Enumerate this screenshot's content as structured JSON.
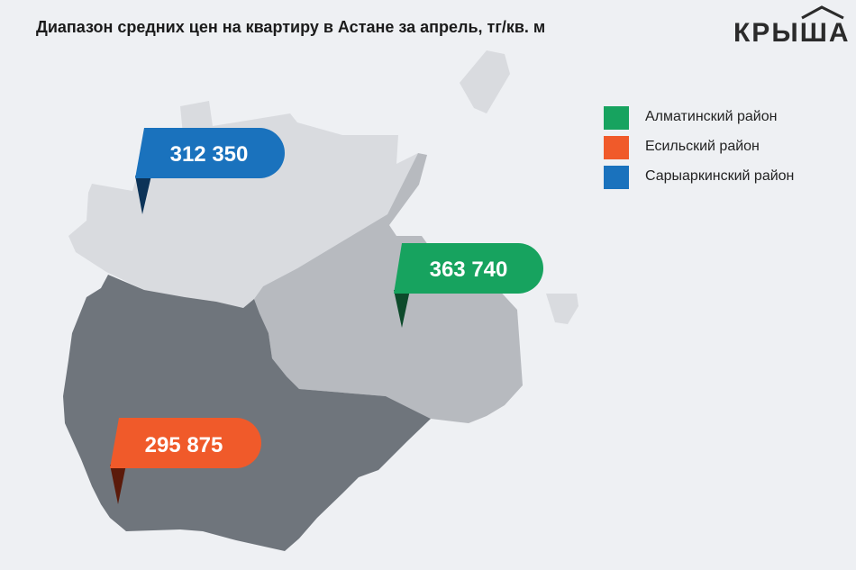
{
  "title": "Диапазон средних цен на квартиру в Астане за апрель, тг/кв. м",
  "logo": {
    "text": "КРЫША"
  },
  "colors": {
    "almaty": "#17a35f",
    "almaty_dark": "#0d4a2b",
    "esil": "#f05a2a",
    "esil_dark": "#5b1a0a",
    "saryarka": "#1a72bd",
    "saryarka_dark": "#0c3358",
    "region_light": "#d9dbdf",
    "region_mid": "#b7babf",
    "region_dark": "#6f757c"
  },
  "legend": [
    {
      "label": "Алматинский район",
      "color": "#17a35f"
    },
    {
      "label": "Есильский район",
      "color": "#f05a2a"
    },
    {
      "label": "Сарыаркинский район",
      "color": "#1a72bd"
    }
  ],
  "pins": {
    "saryarka": {
      "value": "312 350"
    },
    "almaty": {
      "value": "363 740"
    },
    "esil": {
      "value": "295 875"
    }
  }
}
